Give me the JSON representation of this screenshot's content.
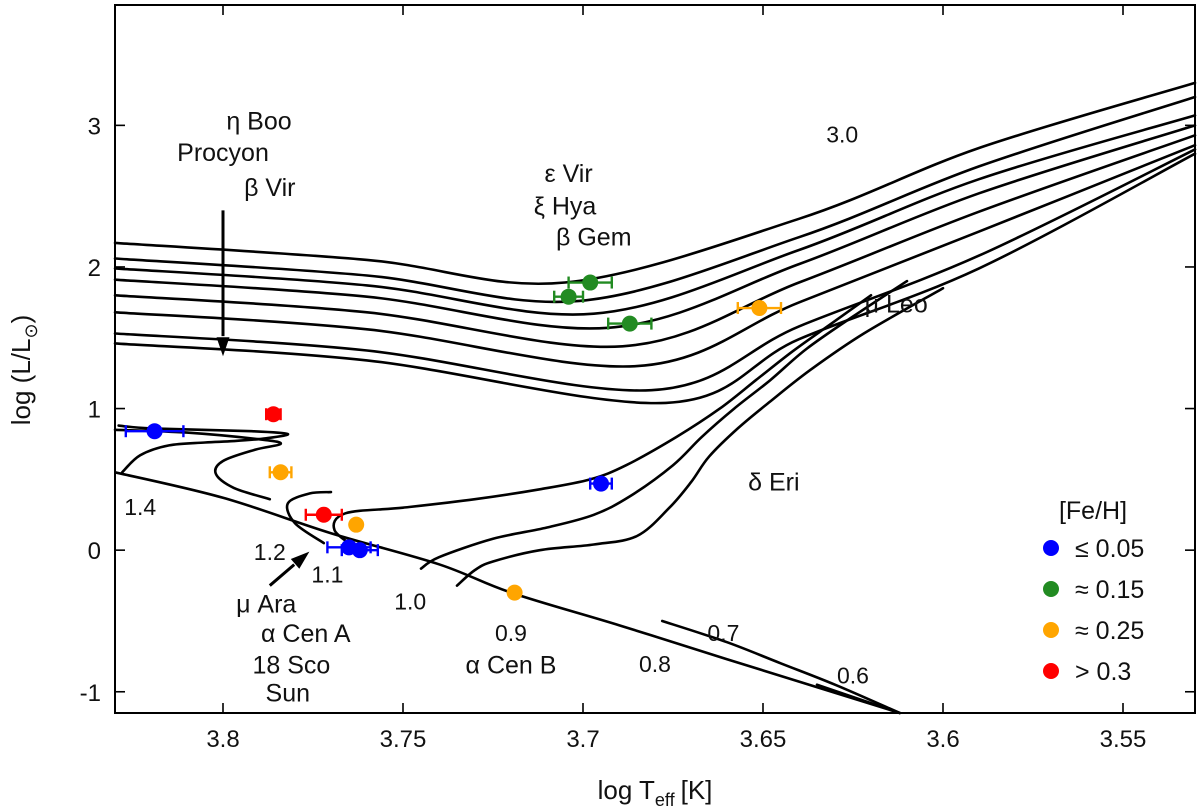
{
  "chart_data": {
    "type": "scatter",
    "xlabel": "log T",
    "xlabel_sub": "eff",
    "xlabel_unit": "[K]",
    "ylabel": "log (L/L",
    "ylabel_sub": "⊙",
    "ylabel_close": ")",
    "xlim": [
      3.83,
      3.53
    ],
    "ylim": [
      -1.15,
      3.85
    ],
    "x_reversed": true,
    "xticks": [
      3.8,
      3.75,
      3.7,
      3.65,
      3.6,
      3.55
    ],
    "xtick_labels": [
      "3.8",
      "3.75",
      "3.7",
      "3.65",
      "3.6",
      "3.55"
    ],
    "yticks": [
      -1,
      0,
      1,
      2,
      3
    ],
    "ytick_labels": [
      "-1",
      "0",
      "1",
      "2",
      "3"
    ],
    "grid": false,
    "legend": {
      "title": "[Fe/H]",
      "placement": "bottom-right",
      "entries": [
        {
          "label": "≤ 0.05",
          "color": "#0000ff"
        },
        {
          "label": "≈ 0.15",
          "color": "#228b22"
        },
        {
          "label": "≈ 0.25",
          "color": "#ffa500"
        },
        {
          "label": "> 0.3",
          "color": "#ff0000"
        }
      ]
    },
    "series": [
      {
        "name": "≤ 0.05",
        "color": "#0000ff",
        "points": [
          {
            "x": 3.819,
            "y": 0.84,
            "xerr": 0.008
          },
          {
            "x": 3.695,
            "y": 0.47,
            "xerr": 0.003
          },
          {
            "x": 3.765,
            "y": 0.02,
            "xerr": 0.006
          },
          {
            "x": 3.762,
            "y": 0.0,
            "xerr": 0.005
          }
        ]
      },
      {
        "name": "≈ 0.15",
        "color": "#228b22",
        "points": [
          {
            "x": 3.698,
            "y": 1.89,
            "xerr": 0.006
          },
          {
            "x": 3.704,
            "y": 1.79,
            "xerr": 0.004
          },
          {
            "x": 3.687,
            "y": 1.6,
            "xerr": 0.006
          }
        ]
      },
      {
        "name": "≈ 0.25",
        "color": "#ffa500",
        "points": [
          {
            "x": 3.651,
            "y": 1.71,
            "xerr": 0.006
          },
          {
            "x": 3.784,
            "y": 0.55,
            "xerr": 0.003
          },
          {
            "x": 3.763,
            "y": 0.18,
            "xerr": 0.0
          },
          {
            "x": 3.719,
            "y": -0.3,
            "xerr": 0.0
          }
        ]
      },
      {
        "name": "> 0.3",
        "color": "#ff0000",
        "points": [
          {
            "x": 3.786,
            "y": 0.96,
            "xerr": 0.002
          },
          {
            "x": 3.772,
            "y": 0.25,
            "xerr": 0.005
          }
        ]
      }
    ],
    "zams": [
      [
        3.83,
        0.55
      ],
      [
        3.8,
        0.37
      ],
      [
        3.77,
        0.12
      ],
      [
        3.74,
        -0.1
      ],
      [
        3.72,
        -0.3
      ],
      [
        3.69,
        -0.53
      ],
      [
        3.66,
        -0.77
      ],
      [
        3.612,
        -1.15
      ]
    ],
    "tracks": [
      {
        "mass": "1.4",
        "points": [
          [
            3.828,
            0.55
          ],
          [
            3.823,
            0.67
          ],
          [
            3.815,
            0.74
          ],
          [
            3.805,
            0.76
          ],
          [
            3.797,
            0.77
          ],
          [
            3.788,
            0.79
          ],
          [
            3.782,
            0.82
          ],
          [
            3.792,
            0.84
          ],
          [
            3.82,
            0.86
          ],
          [
            3.829,
            0.88
          ]
        ]
      },
      {
        "mass": "1.2",
        "points": [
          [
            3.787,
            0.36
          ],
          [
            3.797,
            0.44
          ],
          [
            3.802,
            0.54
          ],
          [
            3.8,
            0.63
          ],
          [
            3.791,
            0.71
          ],
          [
            3.784,
            0.75
          ],
          [
            3.789,
            0.78
          ],
          [
            3.81,
            0.83
          ],
          [
            3.83,
            0.85
          ]
        ]
      },
      {
        "mass": "1.1",
        "points": [
          [
            3.772,
            0.05
          ],
          [
            3.78,
            0.19
          ],
          [
            3.782,
            0.33
          ],
          [
            3.776,
            0.4
          ],
          [
            3.77,
            0.41
          ]
        ]
      },
      {
        "mass": "1.0",
        "points": [
          [
            3.762,
            0.0
          ],
          [
            3.769,
            0.14
          ],
          [
            3.766,
            0.26
          ],
          [
            3.75,
            0.3
          ],
          [
            3.73,
            0.36
          ],
          [
            3.712,
            0.43
          ],
          [
            3.698,
            0.5
          ],
          [
            3.688,
            0.6
          ],
          [
            3.674,
            0.8
          ],
          [
            3.662,
            1.0
          ],
          [
            3.652,
            1.2
          ],
          [
            3.642,
            1.4
          ],
          [
            3.631,
            1.6
          ],
          [
            3.62,
            1.8
          ]
        ]
      },
      {
        "mass": "0.9",
        "points": [
          [
            3.745,
            -0.13
          ],
          [
            3.74,
            -0.05
          ],
          [
            3.725,
            0.08
          ],
          [
            3.71,
            0.16
          ],
          [
            3.697,
            0.25
          ],
          [
            3.687,
            0.38
          ],
          [
            3.675,
            0.6
          ],
          [
            3.667,
            0.8
          ],
          [
            3.658,
            1.0
          ],
          [
            3.648,
            1.2
          ],
          [
            3.638,
            1.42
          ],
          [
            3.625,
            1.65
          ],
          [
            3.61,
            1.9
          ]
        ]
      },
      {
        "mass": "0.8",
        "points": [
          [
            3.735,
            -0.25
          ],
          [
            3.73,
            -0.14
          ],
          [
            3.725,
            -0.08
          ],
          [
            3.712,
            0.0
          ],
          [
            3.697,
            0.04
          ],
          [
            3.685,
            0.1
          ],
          [
            3.676,
            0.3
          ],
          [
            3.67,
            0.48
          ],
          [
            3.665,
            0.66
          ],
          [
            3.657,
            0.86
          ],
          [
            3.648,
            1.05
          ],
          [
            3.637,
            1.27
          ],
          [
            3.622,
            1.53
          ],
          [
            3.6,
            1.85
          ]
        ]
      },
      {
        "mass": "0.7",
        "points": [
          [
            3.678,
            -0.5
          ],
          [
            3.66,
            -0.65
          ],
          [
            3.645,
            -0.8
          ],
          [
            3.63,
            -0.95
          ],
          [
            3.612,
            -1.15
          ]
        ]
      },
      {
        "mass": "0.6",
        "points": [
          [
            3.635,
            -0.95
          ],
          [
            3.612,
            -1.15
          ]
        ]
      }
    ],
    "upper_tracks": {
      "y_start": [
        2.17,
        2.06,
        1.99,
        1.91,
        1.8,
        1.68,
        1.53,
        1.46
      ],
      "x_end": [
        3.53,
        3.53,
        3.53,
        3.53,
        3.53,
        3.53,
        3.53,
        3.53
      ],
      "y_end": [
        3.3,
        3.2,
        3.07,
        3.0,
        2.93,
        2.86,
        2.83,
        2.8
      ]
    },
    "annotations": [
      {
        "text": "η Boo",
        "x": 3.79,
        "y": 2.97
      },
      {
        "text": "Procyon",
        "x": 3.8,
        "y": 2.75
      },
      {
        "text": "β Vir",
        "x": 3.787,
        "y": 2.5
      },
      {
        "text": "ε Vir",
        "x": 3.704,
        "y": 2.6
      },
      {
        "text": "ξ Hya",
        "x": 3.705,
        "y": 2.37
      },
      {
        "text": "β Gem",
        "x": 3.697,
        "y": 2.15
      },
      {
        "text": "μ Leo",
        "x": 3.613,
        "y": 1.68
      },
      {
        "text": "δ Eri",
        "x": 3.647,
        "y": 0.42
      },
      {
        "text": "μ Ara",
        "x": 3.788,
        "y": -0.44
      },
      {
        "text": "α Cen A",
        "x": 3.777,
        "y": -0.65
      },
      {
        "text": "18 Sco",
        "x": 3.781,
        "y": -0.87
      },
      {
        "text": "Sun",
        "x": 3.782,
        "y": -1.07
      },
      {
        "text": "α Cen B",
        "x": 3.72,
        "y": -0.87
      }
    ],
    "mass_labels": [
      {
        "text": "3.0",
        "x": 3.628,
        "y": 2.88
      },
      {
        "text": "1.4",
        "x": 3.823,
        "y": 0.25
      },
      {
        "text": "1.2",
        "x": 3.787,
        "y": -0.07
      },
      {
        "text": "1.1",
        "x": 3.771,
        "y": -0.23
      },
      {
        "text": "1.0",
        "x": 3.748,
        "y": -0.42
      },
      {
        "text": "0.9",
        "x": 3.72,
        "y": -0.64
      },
      {
        "text": "0.8",
        "x": 3.68,
        "y": -0.86
      },
      {
        "text": "0.7",
        "x": 3.661,
        "y": -0.64
      },
      {
        "text": "0.6",
        "x": 3.625,
        "y": -0.94
      }
    ],
    "arrows": [
      {
        "from": [
          3.8,
          2.4
        ],
        "to": [
          3.8,
          1.37
        ]
      },
      {
        "from": [
          3.787,
          -0.25
        ],
        "to": [
          3.776,
          -0.01
        ]
      }
    ]
  }
}
